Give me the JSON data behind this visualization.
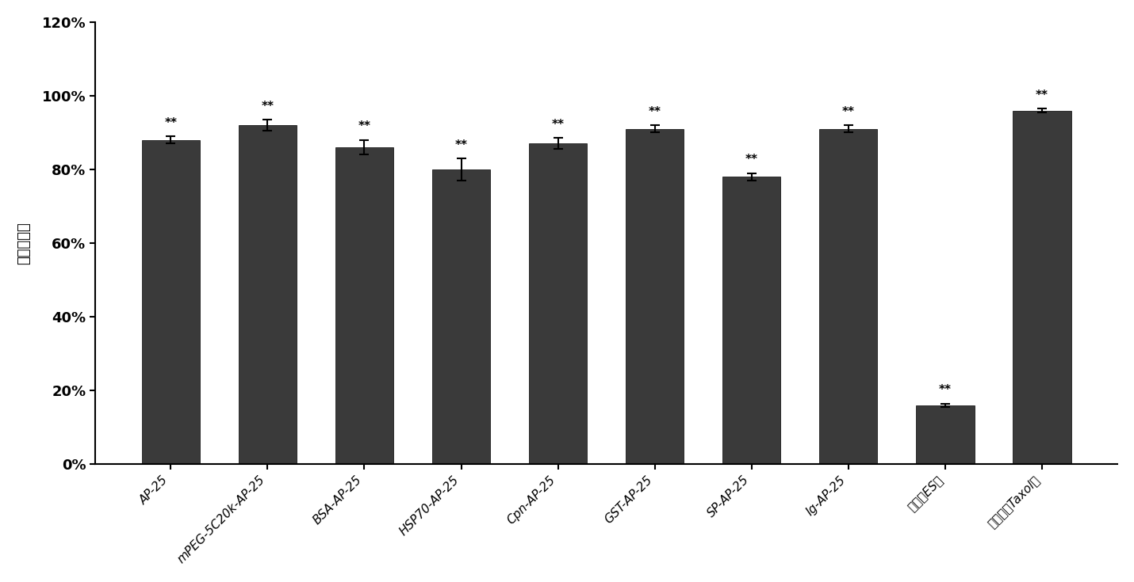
{
  "categories": [
    "AP-25",
    "mPEG-5C20k-AP-25",
    "BSA-AP-25",
    "HSP70-AP-25",
    "Cpn-AP-25",
    "GST-AP-25",
    "SP-AP-25",
    "Ig-AP-25",
    "温度（ES）",
    "紫杉醇（Taxol）"
  ],
  "values": [
    0.88,
    0.92,
    0.86,
    0.8,
    0.87,
    0.91,
    0.78,
    0.91,
    0.16,
    0.96
  ],
  "errors": [
    0.01,
    0.015,
    0.02,
    0.03,
    0.015,
    0.01,
    0.01,
    0.01,
    0.005,
    0.005
  ],
  "bar_color": "#3a3a3a",
  "ylim": [
    0,
    1.2
  ],
  "yticks": [
    0,
    0.2,
    0.4,
    0.6,
    0.8,
    1.0,
    1.2
  ],
  "ytick_labels": [
    "0%",
    "20%",
    "40%",
    "60%",
    "80%",
    "100%",
    "120%"
  ],
  "ylabel": "增殖抑制率",
  "significance": [
    "**",
    "**",
    "**",
    "**",
    "**",
    "**",
    "**",
    "**",
    "**",
    "**"
  ],
  "background_color": "#ffffff",
  "fig_width": 14.3,
  "fig_height": 7.35
}
